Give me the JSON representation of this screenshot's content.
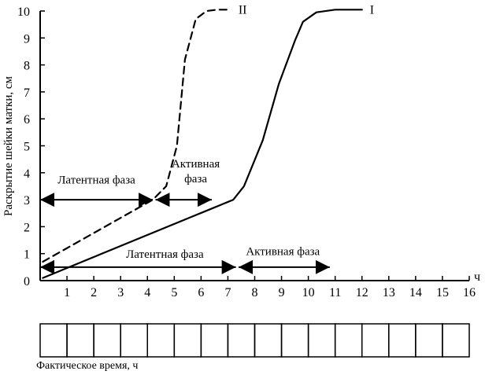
{
  "chart_data": {
    "type": "line",
    "title": "",
    "xlabel": "ч",
    "ylabel": "Раскрытие шейки матки, см",
    "xlim": [
      0,
      16
    ],
    "ylim": [
      0,
      10
    ],
    "x_ticks": [
      1,
      2,
      3,
      4,
      5,
      6,
      7,
      8,
      9,
      10,
      11,
      12,
      13,
      14,
      15,
      16
    ],
    "y_ticks": [
      0,
      1,
      2,
      3,
      4,
      5,
      6,
      7,
      8,
      9,
      10
    ],
    "series": [
      {
        "name": "I",
        "style": "solid",
        "x": [
          0.1,
          7.2,
          7.6,
          8.3,
          8.9,
          9.5,
          9.8,
          10.3,
          11.0,
          12.0
        ],
        "y": [
          0.1,
          3.0,
          3.5,
          5.2,
          7.3,
          8.9,
          9.6,
          9.95,
          10.05,
          10.05
        ]
      },
      {
        "name": "II",
        "style": "dashed",
        "x": [
          0.1,
          4.2,
          4.7,
          5.1,
          5.4,
          5.8,
          6.2,
          6.6,
          7.1
        ],
        "y": [
          0.7,
          3.0,
          3.5,
          5.0,
          8.2,
          9.7,
          10.0,
          10.05,
          10.05
        ]
      }
    ],
    "phase_arrows": [
      {
        "label": "Латентная фаза",
        "x_start": 0.0,
        "x_end": 4.2,
        "y": 3.0,
        "label_x": 2.1,
        "label_y": 3.6
      },
      {
        "label": "Активная фаза",
        "label_line1": "Активная",
        "label_line2": "фаза",
        "x_start": 4.3,
        "x_end": 6.4,
        "y": 3.0,
        "label_x": 5.8,
        "label_y": 4.2
      },
      {
        "label": "Латентная фаза",
        "x_start": 0.0,
        "x_end": 7.3,
        "y": 0.5,
        "label_x": 4.65,
        "label_y": 0.85
      },
      {
        "label": "Активная фаза",
        "x_start": 7.4,
        "x_end": 10.8,
        "y": 0.5,
        "label_x": 9.05,
        "label_y": 0.95
      }
    ],
    "time_cells": 16
  },
  "footer": {
    "label": "Фактическое время, ч"
  }
}
